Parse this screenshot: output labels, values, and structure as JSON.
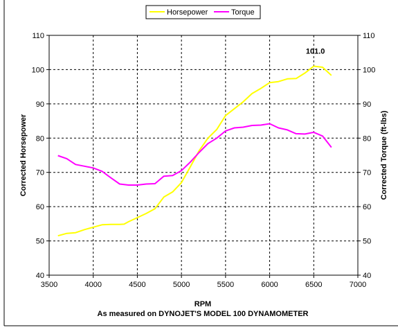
{
  "chart_data": {
    "type": "line",
    "xlabel": "RPM",
    "subtitle": "As measured on DYNOJET'S MODEL 100 DYNAMOMETER",
    "ylabel_left": "Corrected Horsepower",
    "ylabel_right": "Corrected Torque (ft-lbs)",
    "xlim": [
      3500,
      7000
    ],
    "ylim": [
      40,
      110
    ],
    "x_ticks": [
      "3500",
      "4000",
      "4500",
      "5000",
      "5500",
      "6000",
      "6500",
      "7000"
    ],
    "y_ticks": [
      "40",
      "50",
      "60",
      "70",
      "80",
      "90",
      "100",
      "110"
    ],
    "grid": true,
    "legend_position": "top-center",
    "annotation": "101.0",
    "annotation_point": [
      6550,
      101.0
    ],
    "series": [
      {
        "name": "Horsepower",
        "color": "#ffff00",
        "axis": "left",
        "points": [
          [
            3600,
            51.5
          ],
          [
            3700,
            52.2
          ],
          [
            3800,
            52.4
          ],
          [
            3900,
            53.3
          ],
          [
            4000,
            54
          ],
          [
            4100,
            54.7
          ],
          [
            4200,
            54.8
          ],
          [
            4300,
            54.8
          ],
          [
            4350,
            54.9
          ],
          [
            4400,
            55.6
          ],
          [
            4500,
            56.8
          ],
          [
            4600,
            58
          ],
          [
            4700,
            59.4
          ],
          [
            4800,
            62.8
          ],
          [
            4900,
            64.3
          ],
          [
            5000,
            67
          ],
          [
            5100,
            71.6
          ],
          [
            5200,
            76.3
          ],
          [
            5300,
            80
          ],
          [
            5400,
            82.5
          ],
          [
            5500,
            86.6
          ],
          [
            5600,
            88.6
          ],
          [
            5700,
            90.6
          ],
          [
            5800,
            93
          ],
          [
            5900,
            94.5
          ],
          [
            6000,
            96.2
          ],
          [
            6100,
            96.5
          ],
          [
            6200,
            97.3
          ],
          [
            6300,
            97.4
          ],
          [
            6400,
            99
          ],
          [
            6500,
            101
          ],
          [
            6600,
            100.7
          ],
          [
            6700,
            98.3
          ]
        ]
      },
      {
        "name": "Torque",
        "color": "#ff00ff",
        "axis": "right",
        "points": [
          [
            3600,
            74.9
          ],
          [
            3700,
            74
          ],
          [
            3800,
            72.3
          ],
          [
            3900,
            71.8
          ],
          [
            4000,
            71.3
          ],
          [
            4100,
            70.3
          ],
          [
            4200,
            68.4
          ],
          [
            4300,
            66.6
          ],
          [
            4400,
            66.3
          ],
          [
            4500,
            66.3
          ],
          [
            4600,
            66.6
          ],
          [
            4700,
            66.7
          ],
          [
            4800,
            68.9
          ],
          [
            4900,
            69.1
          ],
          [
            5000,
            70.5
          ],
          [
            5100,
            73
          ],
          [
            5200,
            75.8
          ],
          [
            5300,
            78.4
          ],
          [
            5400,
            80
          ],
          [
            5500,
            82.1
          ],
          [
            5600,
            83
          ],
          [
            5700,
            83.2
          ],
          [
            5800,
            83.7
          ],
          [
            5900,
            83.8
          ],
          [
            6000,
            84.2
          ],
          [
            6100,
            83
          ],
          [
            6200,
            82.4
          ],
          [
            6300,
            81.3
          ],
          [
            6400,
            81.2
          ],
          [
            6500,
            81.7
          ],
          [
            6600,
            80.6
          ],
          [
            6700,
            77.3
          ]
        ]
      }
    ]
  }
}
